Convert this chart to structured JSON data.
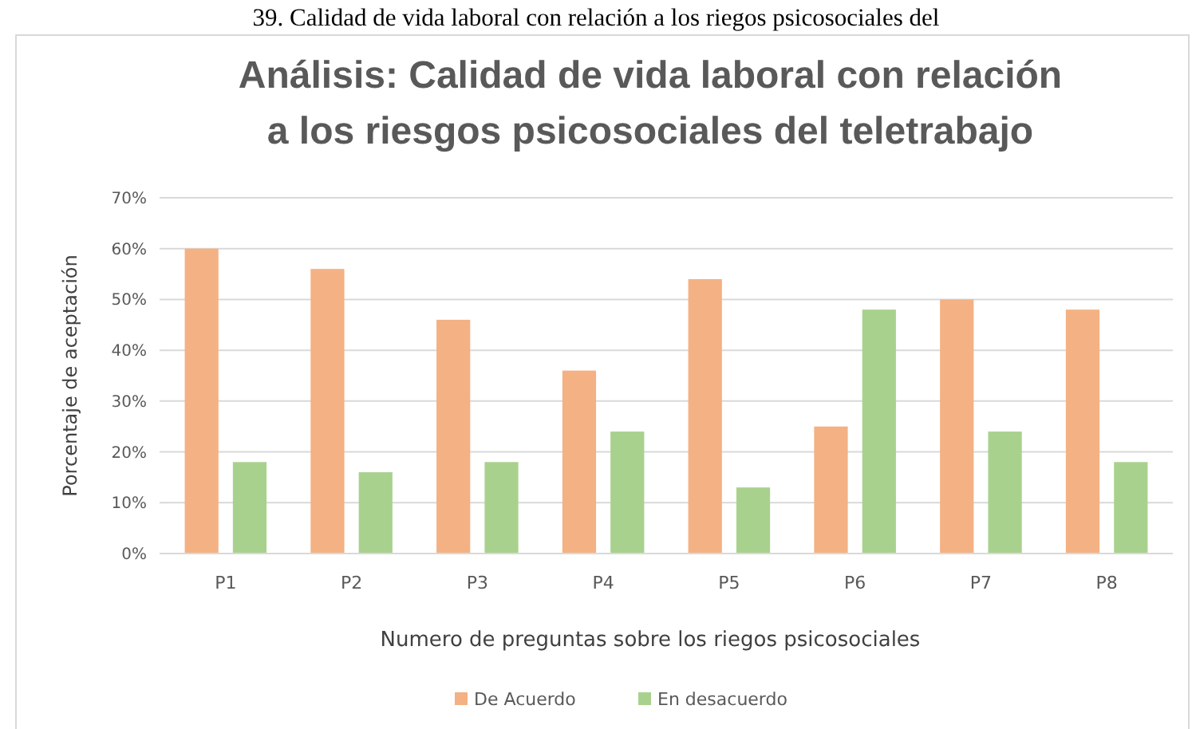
{
  "chart_data": {
    "type": "bar",
    "title": "Análisis: Calidad de vida laboral con relación\na los riesgos psicosociales del teletrabajo",
    "xlabel": "Numero de preguntas sobre los riegos psicosociales",
    "ylabel": "Porcentaje de aceptación",
    "annotations": [
      "39. Calidad de vida laboral con relación a los riegos psicosociales del"
    ],
    "categories": [
      "P1",
      "P2",
      "P3",
      "P4",
      "P5",
      "P6",
      "P7",
      "P8"
    ],
    "series": [
      {
        "name": "De Acuerdo",
        "color": "#f4b183",
        "values": [
          60,
          56,
          46,
          36,
          54,
          25,
          50,
          48
        ]
      },
      {
        "name": "En desacuerdo",
        "color": "#a9d18e",
        "values": [
          18,
          16,
          18,
          24,
          13,
          48,
          24,
          18
        ]
      }
    ],
    "ylim": [
      0,
      70
    ],
    "yticks": [
      {
        "value": 0,
        "label": "0%"
      },
      {
        "value": 10,
        "label": "10%"
      },
      {
        "value": 20,
        "label": "20%"
      },
      {
        "value": 30,
        "label": "30%"
      },
      {
        "value": 40,
        "label": "40%"
      },
      {
        "value": 50,
        "label": "50%"
      },
      {
        "value": 60,
        "label": "60%"
      },
      {
        "value": 70,
        "label": "70%"
      }
    ],
    "grid": "y",
    "legend": "bottom"
  }
}
